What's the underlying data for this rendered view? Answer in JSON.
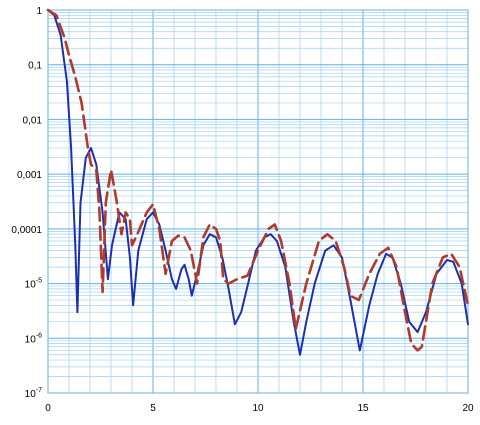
{
  "colors": {
    "grid_minor": "#9fd0ef",
    "grid_major": "#5fb0e6",
    "frame": "#7fbfea",
    "series_solid": "#1c2fb0",
    "series_dashed": "#b23a2a",
    "background": "#ffffff"
  },
  "chart_data": {
    "type": "line",
    "title": "",
    "xlabel": "",
    "ylabel": "",
    "xlim": [
      0,
      20
    ],
    "ylim": [
      1e-07,
      1
    ],
    "y_scale": "log",
    "grid": true,
    "x_ticks": [
      "0",
      "5",
      "10",
      "15",
      "20"
    ],
    "y_ticks": [
      {
        "value": 1,
        "base": "1",
        "exp": ""
      },
      {
        "value": 0.1,
        "base": "0,1",
        "exp": ""
      },
      {
        "value": 0.01,
        "base": "0,01",
        "exp": ""
      },
      {
        "value": 0.001,
        "base": "0,001",
        "exp": ""
      },
      {
        "value": 0.0001,
        "base": "0,0001",
        "exp": ""
      },
      {
        "value": 1e-05,
        "base": "10",
        "exp": "-5"
      },
      {
        "value": 1e-06,
        "base": "10",
        "exp": "-6"
      },
      {
        "value": 1e-07,
        "base": "10",
        "exp": "-7"
      }
    ],
    "series": [
      {
        "style": "solid",
        "color": "#1c2fb0",
        "points": [
          [
            0.0,
            1.0
          ],
          [
            0.3,
            0.8
          ],
          [
            0.6,
            0.35
          ],
          [
            0.9,
            0.05
          ],
          [
            1.1,
            0.003
          ],
          [
            1.3,
            5e-05
          ],
          [
            1.4,
            3e-06
          ],
          [
            1.55,
            0.0003
          ],
          [
            1.8,
            0.002
          ],
          [
            2.05,
            0.003
          ],
          [
            2.3,
            0.0015
          ],
          [
            2.6,
            0.0002
          ],
          [
            2.85,
            1.2e-05
          ],
          [
            3.05,
            5e-05
          ],
          [
            3.4,
            0.0002
          ],
          [
            3.7,
            0.00015
          ],
          [
            3.9,
            3e-05
          ],
          [
            4.05,
            4e-06
          ],
          [
            4.3,
            4e-05
          ],
          [
            4.7,
            0.00015
          ],
          [
            5.0,
            0.0002
          ],
          [
            5.3,
            0.00012
          ],
          [
            5.6,
            4e-05
          ],
          [
            5.9,
            1.2e-05
          ],
          [
            6.1,
            8e-06
          ],
          [
            6.35,
            1.8e-05
          ],
          [
            6.5,
            2.2e-05
          ],
          [
            6.7,
            1.2e-05
          ],
          [
            6.85,
            6e-06
          ],
          [
            7.1,
            1.5e-05
          ],
          [
            7.4,
            5e-05
          ],
          [
            7.7,
            8e-05
          ],
          [
            8.0,
            7e-05
          ],
          [
            8.3,
            3e-05
          ],
          [
            8.6,
            8e-06
          ],
          [
            8.9,
            1.8e-06
          ],
          [
            9.2,
            3e-06
          ],
          [
            9.5,
            9e-06
          ],
          [
            9.9,
            4e-05
          ],
          [
            10.3,
            7e-05
          ],
          [
            10.6,
            8e-05
          ],
          [
            10.9,
            6e-05
          ],
          [
            11.3,
            2e-05
          ],
          [
            11.7,
            2e-06
          ],
          [
            12.0,
            5e-07
          ],
          [
            12.3,
            2e-06
          ],
          [
            12.7,
            1e-05
          ],
          [
            13.2,
            4e-05
          ],
          [
            13.6,
            5e-05
          ],
          [
            14.0,
            3e-05
          ],
          [
            14.4,
            5e-06
          ],
          [
            14.85,
            6e-07
          ],
          [
            15.3,
            4e-06
          ],
          [
            15.7,
            1.5e-05
          ],
          [
            16.1,
            3.5e-05
          ],
          [
            16.4,
            3e-05
          ],
          [
            16.8,
            1e-05
          ],
          [
            17.2,
            2e-06
          ],
          [
            17.6,
            1.3e-06
          ],
          [
            18.0,
            3e-06
          ],
          [
            18.5,
            1.5e-05
          ],
          [
            19.0,
            2.7e-05
          ],
          [
            19.3,
            2.5e-05
          ],
          [
            19.7,
            1e-05
          ],
          [
            20.0,
            1.8e-06
          ]
        ]
      },
      {
        "style": "dashed",
        "color": "#b23a2a",
        "points": [
          [
            0.0,
            1.0
          ],
          [
            0.4,
            0.8
          ],
          [
            0.8,
            0.3
          ],
          [
            1.0,
            0.15
          ],
          [
            1.3,
            0.06
          ],
          [
            1.6,
            0.02
          ],
          [
            1.9,
            0.003
          ],
          [
            2.05,
            0.0015
          ],
          [
            2.3,
            0.0012
          ],
          [
            2.45,
            0.0002
          ],
          [
            2.6,
            7e-06
          ],
          [
            2.75,
            0.0003
          ],
          [
            3.0,
            0.0012
          ],
          [
            3.25,
            0.00035
          ],
          [
            3.5,
            8e-05
          ],
          [
            3.7,
            0.0002
          ],
          [
            3.9,
            0.00015
          ],
          [
            4.0,
            5e-05
          ],
          [
            4.25,
            8e-05
          ],
          [
            4.7,
            0.0002
          ],
          [
            5.0,
            0.00028
          ],
          [
            5.3,
            0.0001
          ],
          [
            5.6,
            1.5e-05
          ],
          [
            5.9,
            6e-05
          ],
          [
            6.2,
            7.5e-05
          ],
          [
            6.5,
            7e-05
          ],
          [
            6.8,
            4e-05
          ],
          [
            7.1,
            1e-05
          ],
          [
            7.4,
            7e-05
          ],
          [
            7.7,
            0.00012
          ],
          [
            8.0,
            0.0001
          ],
          [
            8.2,
            6e-05
          ],
          [
            8.35,
            1.2e-05
          ],
          [
            8.6,
            1e-05
          ],
          [
            9.0,
            1.2e-05
          ],
          [
            9.5,
            1.4e-05
          ],
          [
            10.0,
            4e-05
          ],
          [
            10.5,
            0.0001
          ],
          [
            10.8,
            0.00012
          ],
          [
            11.1,
            6e-05
          ],
          [
            11.5,
            1e-05
          ],
          [
            11.8,
            1.5e-06
          ],
          [
            12.3,
            1e-05
          ],
          [
            12.9,
            6e-05
          ],
          [
            13.3,
            8e-05
          ],
          [
            13.7,
            6e-05
          ],
          [
            14.1,
            2e-05
          ],
          [
            14.4,
            6e-06
          ],
          [
            14.8,
            5e-06
          ],
          [
            15.3,
            1.5e-05
          ],
          [
            15.8,
            3.5e-05
          ],
          [
            16.2,
            4.5e-05
          ],
          [
            16.6,
            2e-05
          ],
          [
            17.0,
            3e-06
          ],
          [
            17.3,
            8e-07
          ],
          [
            17.6,
            6e-07
          ],
          [
            17.8,
            7e-07
          ],
          [
            18.3,
            1e-05
          ],
          [
            18.8,
            3e-05
          ],
          [
            19.2,
            3.5e-05
          ],
          [
            19.6,
            2e-05
          ],
          [
            20.0,
            4e-06
          ]
        ]
      }
    ]
  }
}
